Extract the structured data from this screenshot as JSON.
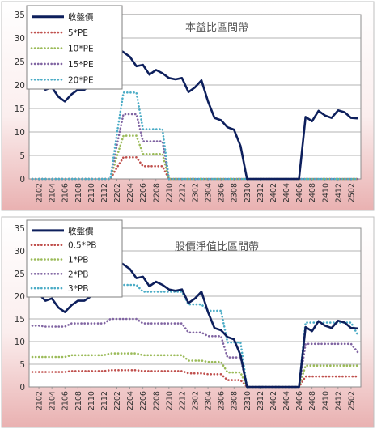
{
  "chart_data": [
    {
      "type": "line",
      "title": "本益比區間帶",
      "ylim": [
        0,
        35
      ],
      "yticks": [
        0,
        5,
        10,
        15,
        20,
        25,
        30,
        35
      ],
      "x": [
        "2101",
        "2102",
        "2103",
        "2104",
        "2105",
        "2106",
        "2107",
        "2108",
        "2109",
        "2110",
        "2111",
        "2112",
        "2201",
        "2202",
        "2203",
        "2204",
        "2205",
        "2206",
        "2207",
        "2208",
        "2209",
        "2210",
        "2211",
        "2212",
        "2301",
        "2302",
        "2303",
        "2304",
        "2305",
        "2306",
        "2307",
        "2308",
        "2309",
        "2310",
        "2311",
        "2312",
        "2401",
        "2402",
        "2403",
        "2404",
        "2405",
        "2406",
        "2407",
        "2408",
        "2409",
        "2410",
        "2411",
        "2412",
        "2501",
        "2502",
        "2503"
      ],
      "xtick_labels": [
        "2102",
        "2104",
        "2106",
        "2108",
        "2110",
        "2112",
        "2202",
        "2204",
        "2206",
        "2208",
        "2210",
        "2212",
        "2302",
        "2304",
        "2306",
        "2308",
        "2310",
        "2312",
        "2402",
        "2404",
        "2406",
        "2408",
        "2410",
        "2412",
        "2502"
      ],
      "grid": "horizontal",
      "legend_position": "top-left",
      "series": [
        {
          "name": "收盤價",
          "color": "#0d1f5c",
          "style": "solid",
          "values": [
            21,
            20.5,
            19,
            19.5,
            17.5,
            16.5,
            18,
            19,
            19,
            20,
            22.5,
            25,
            28,
            27.8,
            27,
            26,
            24,
            24.3,
            22.2,
            23.2,
            22.5,
            21.5,
            21.2,
            21.5,
            18.5,
            19.5,
            21,
            16.5,
            13,
            12.5,
            11,
            10.5,
            7,
            0,
            0,
            0,
            0,
            0,
            0,
            0,
            0,
            0,
            13.2,
            12.3,
            14.5,
            13.5,
            13,
            14.6,
            14.2,
            13,
            12.9
          ]
        },
        {
          "name": "5*PE",
          "color": "#c0504d",
          "style": "dotted",
          "values": [
            0,
            0,
            0,
            0,
            0,
            0,
            0,
            0,
            0,
            0,
            0,
            0,
            0,
            2.4,
            4.6,
            4.6,
            4.6,
            2.7,
            2.7,
            2.7,
            2.7,
            0,
            0,
            0,
            0,
            0,
            0,
            0,
            0,
            0,
            0,
            0,
            0,
            0,
            0,
            0,
            0,
            0,
            0,
            0,
            0,
            0,
            0,
            0,
            0,
            0,
            0,
            0,
            0,
            0,
            0
          ]
        },
        {
          "name": "10*PE",
          "color": "#9bbb59",
          "style": "dotted",
          "values": [
            0,
            0,
            0,
            0,
            0,
            0,
            0,
            0,
            0,
            0,
            0,
            0,
            0,
            4.8,
            9.2,
            9.2,
            9.2,
            5.3,
            5.3,
            5.3,
            5.3,
            0,
            0,
            0,
            0,
            0,
            0,
            0,
            0,
            0,
            0,
            0,
            0,
            0,
            0,
            0,
            0,
            0,
            0,
            0,
            0,
            0,
            0,
            0,
            0,
            0,
            0,
            0,
            0,
            0,
            0
          ]
        },
        {
          "name": "15*PE",
          "color": "#8064a2",
          "style": "dotted",
          "values": [
            0,
            0,
            0,
            0,
            0,
            0,
            0,
            0,
            0,
            0,
            0,
            0,
            0,
            7.2,
            13.8,
            13.8,
            13.8,
            8,
            8,
            8,
            8,
            0,
            0,
            0,
            0,
            0,
            0,
            0,
            0,
            0,
            0,
            0,
            0,
            0,
            0,
            0,
            0,
            0,
            0,
            0,
            0,
            0,
            0,
            0,
            0,
            0,
            0,
            0,
            0,
            0,
            0
          ]
        },
        {
          "name": "20*PE",
          "color": "#4bacc6",
          "style": "dotted",
          "values": [
            0,
            0,
            0,
            0,
            0,
            0,
            0,
            0,
            0,
            0,
            0,
            0,
            0,
            9.6,
            18.4,
            18.4,
            18.4,
            10.6,
            10.6,
            10.6,
            10.6,
            0,
            0,
            0,
            0,
            0,
            0,
            0,
            0,
            0,
            0,
            0,
            0,
            0,
            0,
            0,
            0,
            0,
            0,
            0,
            0,
            0,
            0,
            0,
            0,
            0,
            0,
            0,
            0,
            0,
            0
          ]
        }
      ]
    },
    {
      "type": "line",
      "title": "股價淨值比區間帶",
      "ylim": [
        0,
        35
      ],
      "yticks": [
        0,
        5,
        10,
        15,
        20,
        25,
        30,
        35
      ],
      "x": [
        "2101",
        "2102",
        "2103",
        "2104",
        "2105",
        "2106",
        "2107",
        "2108",
        "2109",
        "2110",
        "2111",
        "2112",
        "2201",
        "2202",
        "2203",
        "2204",
        "2205",
        "2206",
        "2207",
        "2208",
        "2209",
        "2210",
        "2211",
        "2212",
        "2301",
        "2302",
        "2303",
        "2304",
        "2305",
        "2306",
        "2307",
        "2308",
        "2309",
        "2310",
        "2311",
        "2312",
        "2401",
        "2402",
        "2403",
        "2404",
        "2405",
        "2406",
        "2407",
        "2408",
        "2409",
        "2410",
        "2411",
        "2412",
        "2501",
        "2502",
        "2503"
      ],
      "xtick_labels": [
        "2102",
        "2104",
        "2106",
        "2108",
        "2110",
        "2112",
        "2202",
        "2204",
        "2206",
        "2208",
        "2210",
        "2212",
        "2302",
        "2304",
        "2306",
        "2308",
        "2310",
        "2312",
        "2402",
        "2404",
        "2406",
        "2408",
        "2410",
        "2412",
        "2502"
      ],
      "grid": "horizontal",
      "legend_position": "top-left",
      "series": [
        {
          "name": "收盤價",
          "color": "#0d1f5c",
          "style": "solid",
          "values": [
            21,
            20.5,
            19,
            19.5,
            17.5,
            16.5,
            18,
            19,
            19,
            20,
            22.5,
            25,
            28,
            27.8,
            27,
            26,
            24,
            24.3,
            22.2,
            23.2,
            22.5,
            21.5,
            21.2,
            21.5,
            18.5,
            19.5,
            21,
            16.5,
            13,
            12.5,
            11,
            10.5,
            7,
            0,
            0,
            0,
            0,
            0,
            0,
            0,
            0,
            0,
            13.2,
            12.3,
            14.5,
            13.5,
            13,
            14.6,
            14.2,
            13,
            12.9
          ]
        },
        {
          "name": "0.5*PB",
          "color": "#c0504d",
          "style": "dotted",
          "values": [
            3.3,
            3.3,
            3.3,
            3.3,
            3.3,
            3.3,
            3.5,
            3.5,
            3.5,
            3.5,
            3.5,
            3.5,
            3.7,
            3.7,
            3.7,
            3.7,
            3.7,
            3.5,
            3.5,
            3.5,
            3.5,
            3.5,
            3.5,
            3.5,
            3.0,
            3.0,
            3.0,
            2.8,
            2.8,
            2.8,
            1.5,
            1.5,
            1.5,
            0,
            0,
            0,
            0,
            0,
            0,
            0,
            0,
            0,
            2.3,
            2.3,
            2.3,
            2.3,
            2.3,
            2.3,
            2.3,
            2.3,
            2.3
          ]
        },
        {
          "name": "1*PB",
          "color": "#9bbb59",
          "style": "dotted",
          "values": [
            6.6,
            6.6,
            6.6,
            6.6,
            6.6,
            6.6,
            7.0,
            7.0,
            7.0,
            7.0,
            7.0,
            7.0,
            7.4,
            7.4,
            7.4,
            7.4,
            7.4,
            7.0,
            7.0,
            7.0,
            7.0,
            7.0,
            7.0,
            7.0,
            5.8,
            5.8,
            5.8,
            5.5,
            5.5,
            5.5,
            3.2,
            3.2,
            3.2,
            0,
            0,
            0,
            0,
            0,
            0,
            0,
            0,
            0,
            4.7,
            4.7,
            4.7,
            4.7,
            4.7,
            4.7,
            4.7,
            4.7,
            4.7
          ]
        },
        {
          "name": "2*PB",
          "color": "#8064a2",
          "style": "dotted",
          "values": [
            13.5,
            13.5,
            13.3,
            13.3,
            13.3,
            13.3,
            14.0,
            14.0,
            14.0,
            14.0,
            14.0,
            14.0,
            15.0,
            15.0,
            15.0,
            15.0,
            15.0,
            14.0,
            14.0,
            14.0,
            14.0,
            14.0,
            14.0,
            14.0,
            12.0,
            12.0,
            12.0,
            11.2,
            11.2,
            11.2,
            6.5,
            6.5,
            6.5,
            0,
            0,
            0,
            0,
            0,
            0,
            0,
            0,
            0,
            9.5,
            9.5,
            9.5,
            9.5,
            9.5,
            9.5,
            9.5,
            9.5,
            7.7
          ]
        },
        {
          "name": "3*PB",
          "color": "#4bacc6",
          "style": "dotted",
          "values": [
            20.3,
            20.3,
            20.0,
            20.0,
            20.0,
            20.0,
            21.3,
            21.3,
            21.3,
            21.3,
            21.3,
            21.3,
            22.5,
            22.5,
            22.5,
            22.5,
            22.5,
            21.0,
            21.0,
            21.0,
            21.0,
            21.0,
            21.0,
            21.0,
            18.2,
            18.2,
            18.2,
            16.8,
            16.8,
            16.8,
            9.8,
            9.8,
            9.8,
            0,
            0,
            0,
            0,
            0,
            0,
            0,
            0,
            0,
            14.2,
            14.2,
            14.2,
            14.2,
            14.2,
            14.2,
            14.2,
            14.2,
            11.5
          ]
        }
      ]
    }
  ]
}
